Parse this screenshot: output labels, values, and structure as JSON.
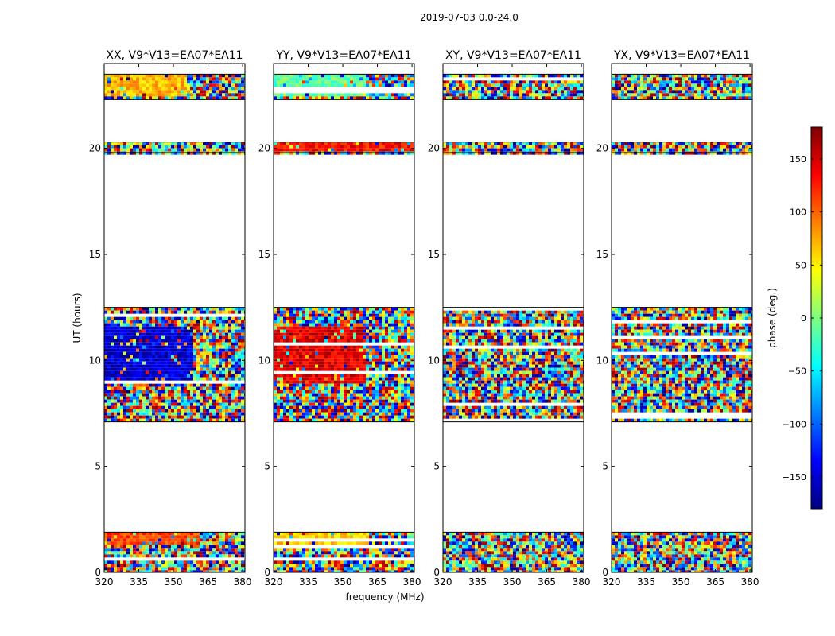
{
  "figure": {
    "suptitle": "2019-07-03 0.0-24.0",
    "xlabel": "frequency (MHz)",
    "ylabel": "UT (hours)"
  },
  "colorbar": {
    "label": "phase (deg.)",
    "vmin": -180,
    "vmax": 180,
    "ticks": [
      "150",
      "100",
      "50",
      "0",
      "−50",
      "−100",
      "−150"
    ],
    "tick_values": [
      150,
      100,
      50,
      0,
      -50,
      -100,
      -150
    ],
    "colormap": "jet",
    "colors": [
      "#00007f",
      "#0000ff",
      "#007fff",
      "#00ffff",
      "#7fff7f",
      "#ffff00",
      "#ff7f00",
      "#ff0000",
      "#7f0000"
    ]
  },
  "chart_data": [
    {
      "type": "heatmap",
      "title": "XX, V9*V13=EA07*EA11",
      "xlim": [
        320,
        381
      ],
      "ylim": [
        0,
        24
      ],
      "xticks": [
        "320",
        "335",
        "350",
        "365",
        "380"
      ],
      "xtick_values": [
        320,
        335,
        350,
        365,
        380
      ],
      "yticks": [
        "0",
        "5",
        "10",
        "15",
        "20"
      ],
      "ytick_values": [
        0,
        5,
        10,
        15,
        20
      ],
      "data_blocks_ut": [
        [
          0.0,
          1.9
        ],
        [
          7.1,
          12.5
        ],
        [
          19.8,
          20.3
        ],
        [
          22.3,
          23.5
        ]
      ],
      "coherent_regions": [
        {
          "ut": [
            1.3,
            1.9
          ],
          "freq": [
            320,
            362
          ],
          "phase_deg": 110
        },
        {
          "ut": [
            8.9,
            11.6
          ],
          "freq": [
            320,
            358
          ],
          "phase_deg": -150
        },
        {
          "ut": [
            22.4,
            23.5
          ],
          "freq": [
            320,
            356
          ],
          "phase_deg": 70
        }
      ]
    },
    {
      "type": "heatmap",
      "title": "YY, V9*V13=EA07*EA11",
      "xlim": [
        320,
        381
      ],
      "ylim": [
        0,
        24
      ],
      "xticks": [
        "320",
        "335",
        "350",
        "365",
        "380"
      ],
      "xtick_values": [
        320,
        335,
        350,
        365,
        380
      ],
      "yticks": [
        "0",
        "5",
        "10",
        "15",
        "20"
      ],
      "ytick_values": [
        0,
        5,
        10,
        15,
        20
      ],
      "data_blocks_ut": [
        [
          0.0,
          1.9
        ],
        [
          7.1,
          12.5
        ],
        [
          19.8,
          20.3
        ],
        [
          22.3,
          23.5
        ]
      ],
      "coherent_regions": [
        {
          "ut": [
            1.3,
            1.9
          ],
          "freq": [
            320,
            362
          ],
          "phase_deg": 60
        },
        {
          "ut": [
            8.9,
            11.6
          ],
          "freq": [
            320,
            360
          ],
          "phase_deg": 145
        },
        {
          "ut": [
            19.9,
            20.3
          ],
          "freq": [
            320,
            381
          ],
          "phase_deg": 130
        },
        {
          "ut": [
            22.4,
            23.5
          ],
          "freq": [
            320,
            360
          ],
          "phase_deg": -10
        }
      ]
    },
    {
      "type": "heatmap",
      "title": "XY, V9*V13=EA07*EA11",
      "xlim": [
        320,
        381
      ],
      "ylim": [
        0,
        24
      ],
      "xticks": [
        "320",
        "335",
        "350",
        "365",
        "380"
      ],
      "xtick_values": [
        320,
        335,
        350,
        365,
        380
      ],
      "yticks": [
        "0",
        "5",
        "10",
        "15",
        "20"
      ],
      "ytick_values": [
        0,
        5,
        10,
        15,
        20
      ],
      "data_blocks_ut": [
        [
          0.0,
          1.9
        ],
        [
          7.1,
          12.5
        ],
        [
          19.8,
          20.3
        ],
        [
          22.3,
          23.5
        ]
      ],
      "coherent_regions": []
    },
    {
      "type": "heatmap",
      "title": "YX, V9*V13=EA07*EA11",
      "xlim": [
        320,
        381
      ],
      "ylim": [
        0,
        24
      ],
      "xticks": [
        "320",
        "335",
        "350",
        "365",
        "380"
      ],
      "xtick_values": [
        320,
        335,
        350,
        365,
        380
      ],
      "yticks": [
        "0",
        "5",
        "10",
        "15",
        "20"
      ],
      "ytick_values": [
        0,
        5,
        10,
        15,
        20
      ],
      "data_blocks_ut": [
        [
          0.0,
          1.9
        ],
        [
          7.1,
          12.5
        ],
        [
          19.8,
          20.3
        ],
        [
          22.3,
          23.5
        ]
      ],
      "coherent_regions": []
    }
  ]
}
